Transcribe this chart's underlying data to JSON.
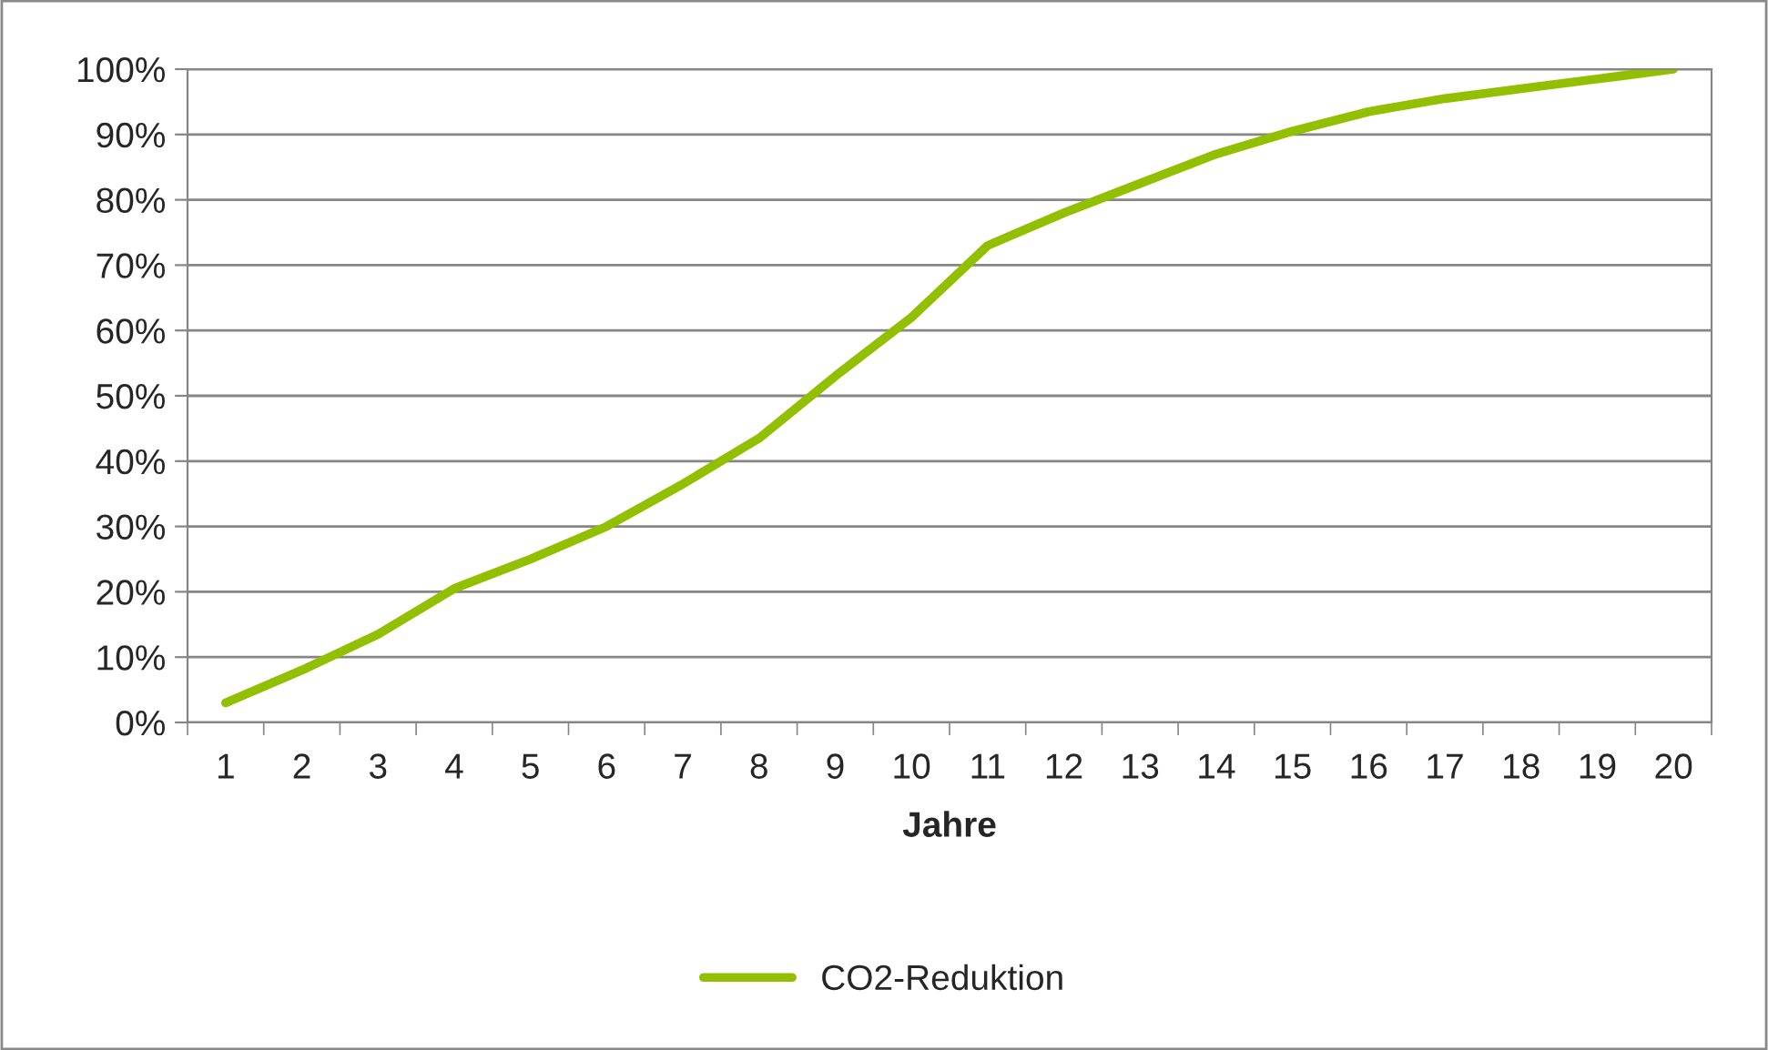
{
  "chart_data": {
    "type": "line",
    "xlabel": "Jahre",
    "categories": [
      "1",
      "2",
      "3",
      "4",
      "5",
      "6",
      "7",
      "8",
      "9",
      "10",
      "11",
      "12",
      "13",
      "14",
      "15",
      "16",
      "17",
      "18",
      "19",
      "20"
    ],
    "series": [
      {
        "name": "CO2-Reduktion",
        "color": "#92c000",
        "values": [
          3,
          8,
          13.5,
          20.5,
          25,
          30,
          36.5,
          43.5,
          53,
          62,
          73,
          78,
          82.5,
          87,
          90.5,
          93.5,
          95.5,
          97,
          98.5,
          100
        ]
      }
    ],
    "ylim": [
      0,
      100
    ],
    "yticks": [
      {
        "value": 0,
        "label": "0%"
      },
      {
        "value": 10,
        "label": "10%"
      },
      {
        "value": 20,
        "label": "20%"
      },
      {
        "value": 30,
        "label": "30%"
      },
      {
        "value": 40,
        "label": "40%"
      },
      {
        "value": 50,
        "label": "50%"
      },
      {
        "value": 60,
        "label": "60%"
      },
      {
        "value": 70,
        "label": "70%"
      },
      {
        "value": 80,
        "label": "80%"
      },
      {
        "value": 90,
        "label": "90%"
      },
      {
        "value": 100,
        "label": "100%"
      }
    ],
    "grid": "y",
    "legend": "bottom",
    "marker": "none",
    "line_style": "solid"
  }
}
